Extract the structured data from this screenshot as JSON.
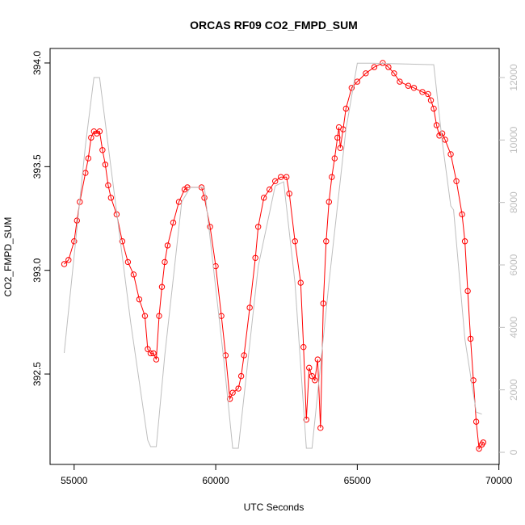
{
  "chart_data": {
    "type": "line",
    "title": "ORCAS RF09 CO2_FMPD_SUM",
    "x_label": "UTC Seconds",
    "y_label": "CO2_FMPD_SUM",
    "xlim": [
      54150,
      70010
    ],
    "xticks": [
      55000,
      60000,
      65000,
      70000
    ],
    "ylim": [
      392.064,
      394.07
    ],
    "yticks": [
      392.5,
      {
        "value": 393,
        "label": "393.0"
      },
      393.5,
      {
        "value": 394,
        "label": "394.0"
      }
    ],
    "y2lim": [
      -388,
      12931
    ],
    "y2ticks": [
      0,
      2000,
      4000,
      6000,
      8000,
      10000,
      12000
    ],
    "grid": false,
    "series": [
      {
        "name": "CO2_FMPD_SUM",
        "color": "#ff0000",
        "marker": "circle",
        "x": [
          54650,
          54800,
          55000,
          55100,
          55200,
          55400,
          55500,
          55600,
          55700,
          55800,
          55900,
          56000,
          56100,
          56200,
          56300,
          56500,
          56700,
          56900,
          57100,
          57300,
          57500,
          57600,
          57700,
          57800,
          57900,
          58000,
          58100,
          58200,
          58300,
          58500,
          58700,
          58900,
          59000,
          59500,
          59600,
          59800,
          60000,
          60200,
          60350,
          60500,
          60600,
          60800,
          60900,
          61000,
          61200,
          61400,
          61500,
          61700,
          61900,
          62100,
          62300,
          62500,
          62600,
          62800,
          63000,
          63100,
          63200,
          63300,
          63400,
          63500,
          63600,
          63700,
          63800,
          63900,
          64000,
          64100,
          64200,
          64300,
          64350,
          64400,
          64500,
          64600,
          64800,
          65000,
          65300,
          65600,
          65900,
          66100,
          66300,
          66500,
          66800,
          67000,
          67300,
          67500,
          67600,
          67700,
          67800,
          67900,
          68000,
          68100,
          68300,
          68500,
          68700,
          68800,
          68900,
          69000,
          69100,
          69200,
          69300,
          69400,
          69450
        ],
        "values": [
          393.03,
          393.05,
          393.14,
          393.24,
          393.33,
          393.47,
          393.54,
          393.64,
          393.67,
          393.66,
          393.67,
          393.58,
          393.51,
          393.41,
          393.35,
          393.27,
          393.14,
          393.04,
          392.98,
          392.86,
          392.78,
          392.62,
          392.6,
          392.6,
          392.57,
          392.78,
          392.92,
          393.04,
          393.12,
          393.23,
          393.33,
          393.39,
          393.4,
          393.4,
          393.35,
          393.21,
          393.02,
          392.78,
          392.59,
          392.38,
          392.41,
          392.43,
          392.49,
          392.59,
          392.82,
          393.06,
          393.21,
          393.35,
          393.39,
          393.43,
          393.45,
          393.45,
          393.37,
          393.14,
          392.94,
          392.63,
          392.28,
          392.53,
          392.49,
          392.47,
          392.57,
          392.24,
          392.84,
          393.14,
          393.33,
          393.45,
          393.54,
          393.64,
          393.69,
          393.59,
          393.68,
          393.78,
          393.88,
          393.91,
          393.95,
          393.98,
          394.0,
          393.98,
          393.95,
          393.91,
          393.89,
          393.88,
          393.86,
          393.85,
          393.82,
          393.78,
          393.7,
          393.65,
          393.66,
          393.63,
          393.56,
          393.43,
          393.27,
          393.14,
          392.9,
          392.67,
          392.47,
          392.27,
          392.14,
          392.16,
          392.17
        ]
      },
      {
        "color": "#bebebe",
        "axis": "y2",
        "x": [
          54650,
          55400,
          55700,
          55900,
          56200,
          57000,
          57600,
          57700,
          57900,
          58200,
          58800,
          59100,
          59600,
          60300,
          60600,
          60800,
          61500,
          62100,
          62400,
          62800,
          63200,
          63400,
          64000,
          64600,
          65000,
          65500,
          67700,
          68000,
          68300,
          68400,
          68800,
          69200,
          69400
        ],
        "values": [
          3180,
          9830,
          12000,
          12000,
          9830,
          4140,
          390,
          180,
          180,
          3100,
          8020,
          8480,
          8480,
          2840,
          130,
          130,
          5950,
          8530,
          8660,
          5430,
          130,
          130,
          5430,
          10340,
          12460,
          12460,
          12410,
          9960,
          7890,
          7760,
          3620,
          1290,
          1220
        ]
      }
    ]
  }
}
